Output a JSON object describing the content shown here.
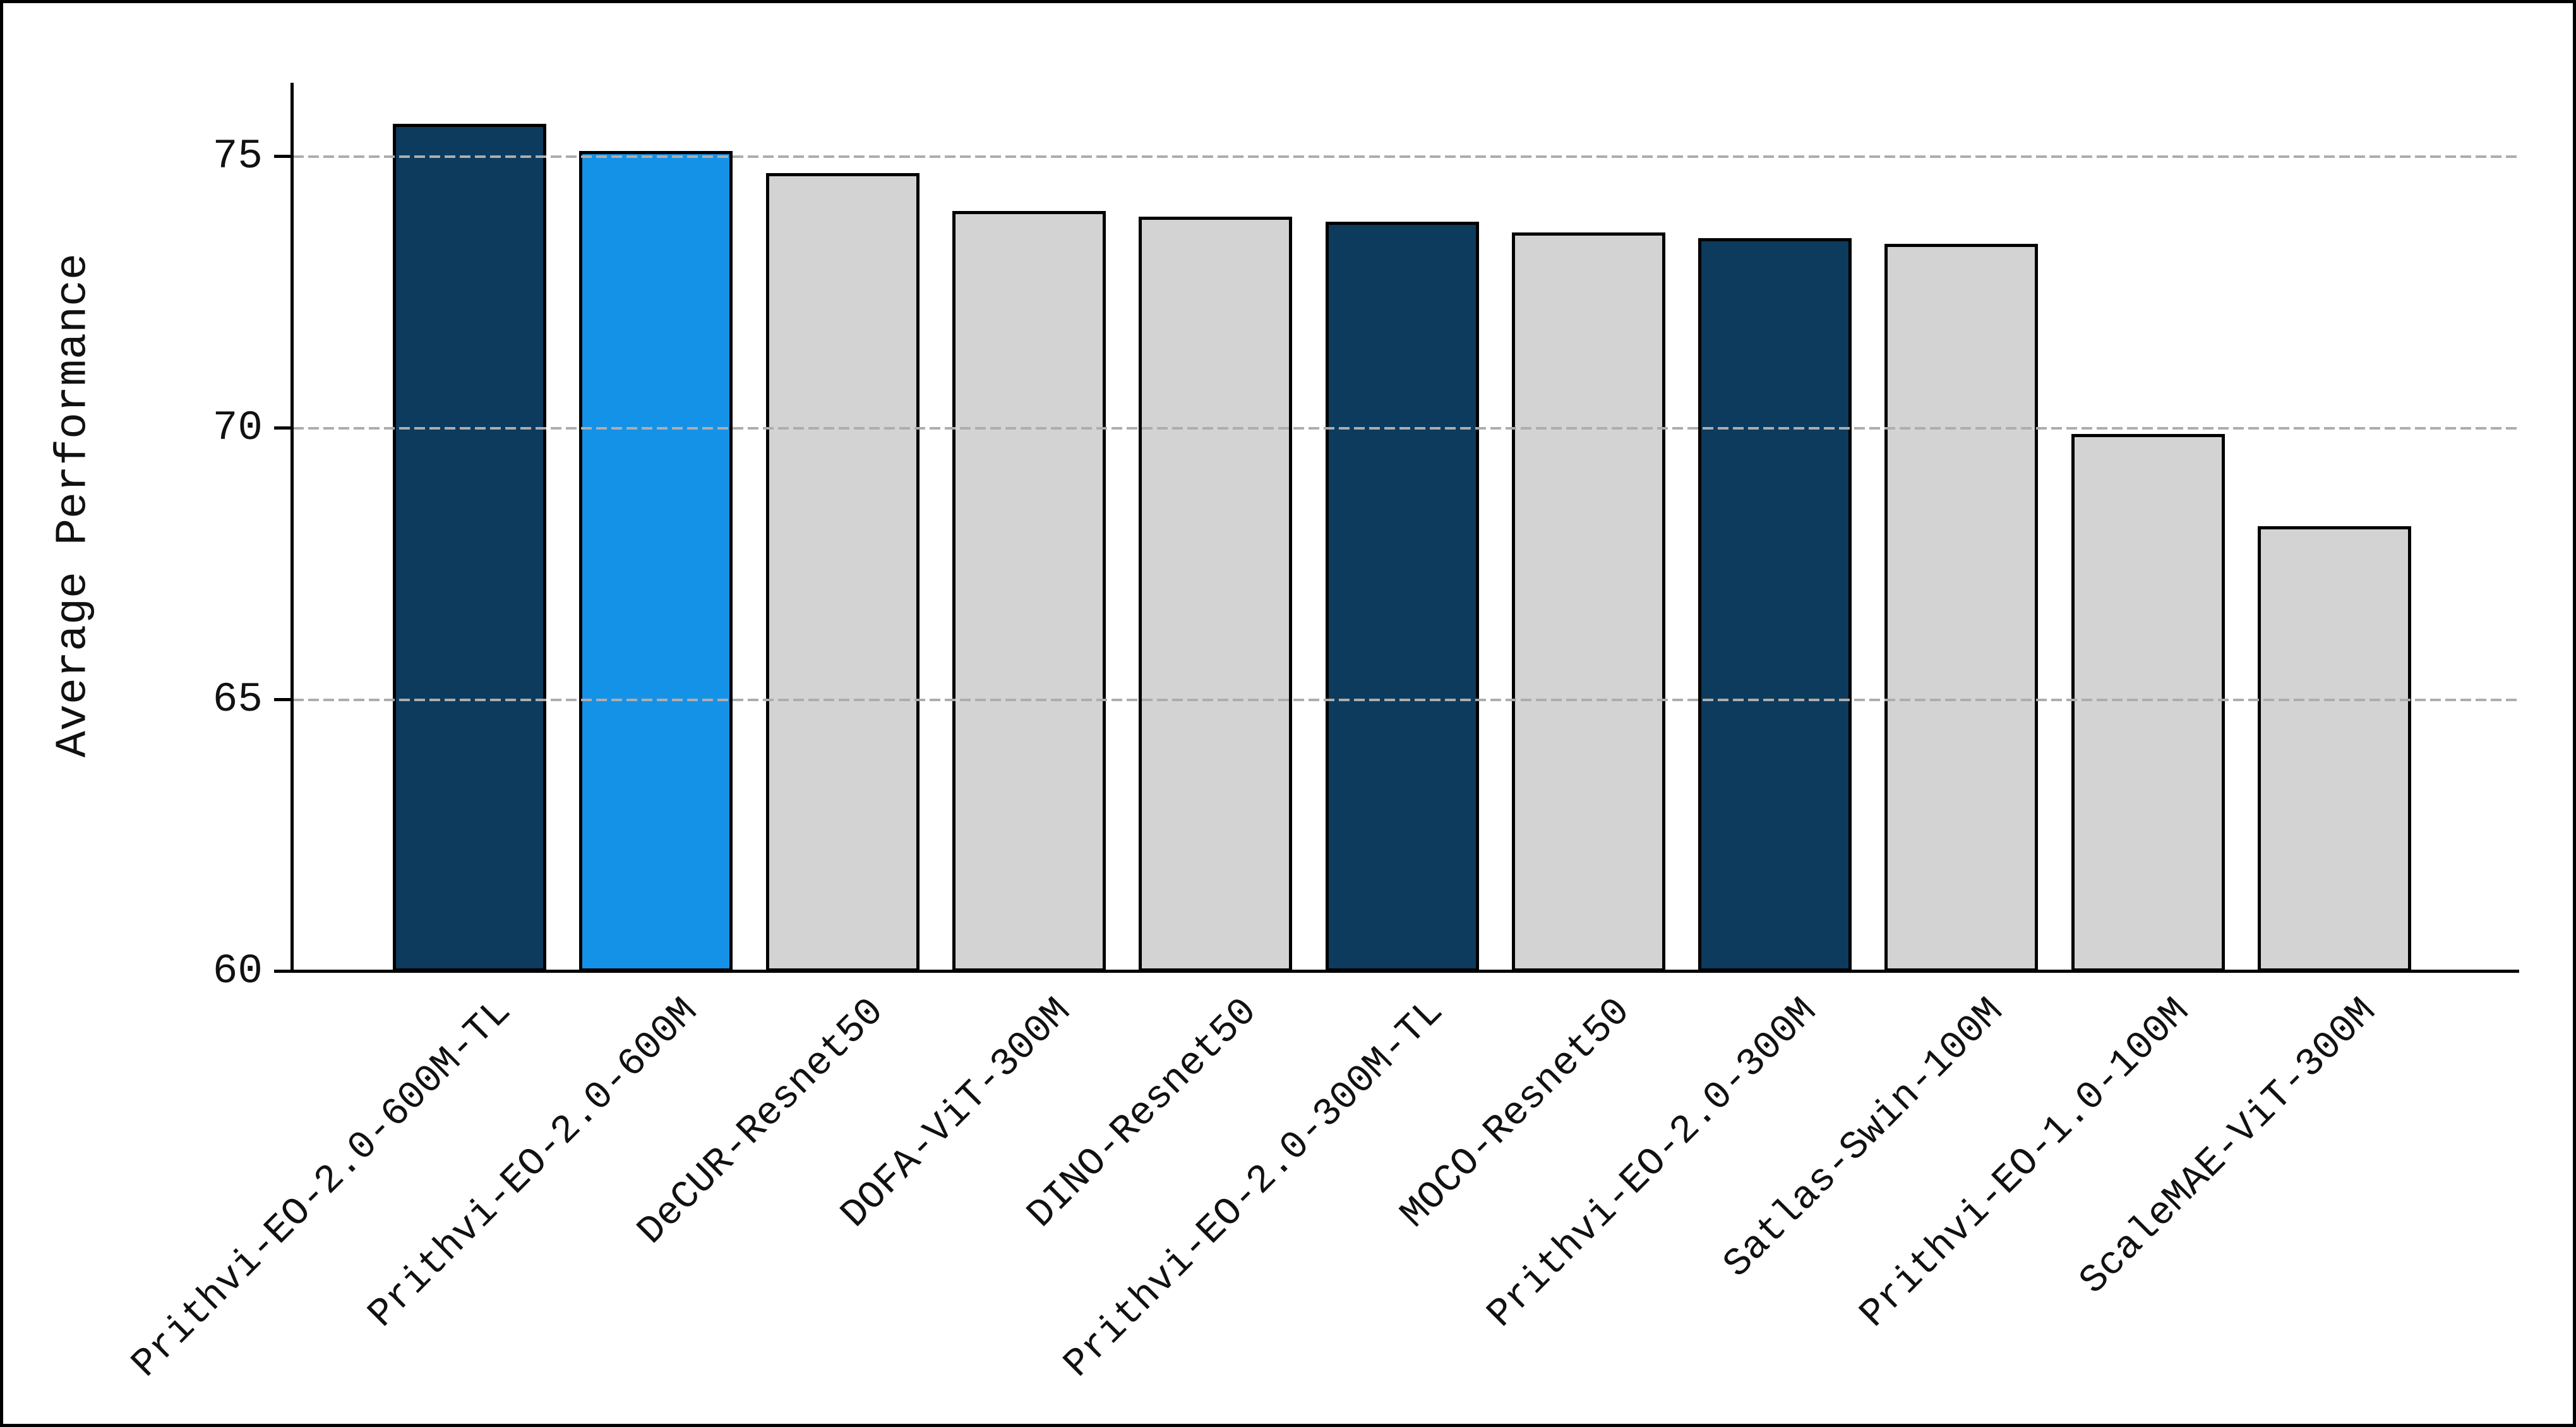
{
  "figure": {
    "background": "#FFFFFF",
    "frame_color": "#000000"
  },
  "chart_data": {
    "type": "bar",
    "title": "",
    "xlabel": "",
    "ylabel": "Average Performance",
    "ylim": [
      60,
      76.4
    ],
    "yticks": [
      60,
      65,
      70,
      75
    ],
    "gridline_values": [
      65,
      70,
      75
    ],
    "grid_style": "dashed",
    "grid_color": "#ADADAD",
    "grid_above_bars": true,
    "legend_position": "none",
    "categories": [
      "Prithvi-EO-2.0-600M-TL",
      "Prithvi-EO-2.0-600M",
      "DeCUR-Resnet50",
      "DOFA-ViT-300M",
      "DINO-Resnet50",
      "Prithvi-EO-2.0-300M-TL",
      "MOCO-Resnet50",
      "Prithvi-EO-2.0-300M",
      "Satlas-Swin-100M",
      "Prithvi-EO-1.0-100M",
      "ScaleMAE-ViT-300M"
    ],
    "values": [
      75.6,
      75.1,
      74.7,
      74.0,
      73.9,
      73.8,
      73.6,
      73.5,
      73.4,
      69.9,
      68.2
    ],
    "bar_colors": [
      "#0C3B5D",
      "#1492E8",
      "#D3D3D3",
      "#D3D3D3",
      "#D3D3D3",
      "#0C3B5D",
      "#D3D3D3",
      "#0C3B5D",
      "#D3D3D3",
      "#D3D3D3",
      "#D3D3D3"
    ],
    "bar_edge_color": "#000000",
    "palette": {
      "prithvi_dark_blue": "#0C3B5D",
      "prithvi_light_blue": "#1492E8",
      "baseline_gray": "#D3D3D3"
    }
  }
}
